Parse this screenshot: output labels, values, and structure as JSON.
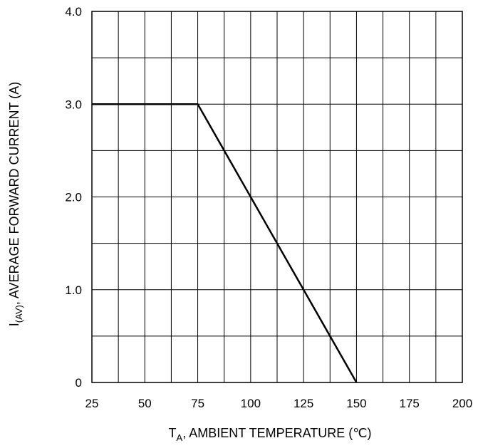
{
  "chart_data": {
    "type": "line",
    "xlabel": {
      "symbol": "T",
      "subscript": "A",
      "text": ", AMBIENT TEMPERATURE (℃)"
    },
    "ylabel": {
      "symbol": "I",
      "subscript": "(AV)",
      "text": ", AVERAGE FORWARD CURRENT (A)"
    },
    "xlim": [
      25,
      200
    ],
    "ylim": [
      0,
      4.0
    ],
    "x_ticks": [
      {
        "value": 25,
        "label": "25"
      },
      {
        "value": 50,
        "label": "50"
      },
      {
        "value": 75,
        "label": "75"
      },
      {
        "value": 100,
        "label": "100"
      },
      {
        "value": 125,
        "label": "125"
      },
      {
        "value": 150,
        "label": "150"
      },
      {
        "value": 175,
        "label": "175"
      },
      {
        "value": 200,
        "label": "200"
      }
    ],
    "y_ticks": [
      {
        "value": 0,
        "label": "0"
      },
      {
        "value": 1.0,
        "label": "1.0"
      },
      {
        "value": 2.0,
        "label": "2.0"
      },
      {
        "value": 3.0,
        "label": "3.0"
      },
      {
        "value": 4.0,
        "label": "4.0"
      }
    ],
    "x_minor_step": 12.5,
    "y_minor_step": 0.5,
    "grid": true,
    "series": [
      {
        "x": [
          25,
          75,
          150
        ],
        "y": [
          3.0,
          3.0,
          0
        ]
      }
    ],
    "colors": {
      "line": "#000000",
      "grid": "#000000",
      "frame": "#000000",
      "background": "#ffffff"
    }
  }
}
